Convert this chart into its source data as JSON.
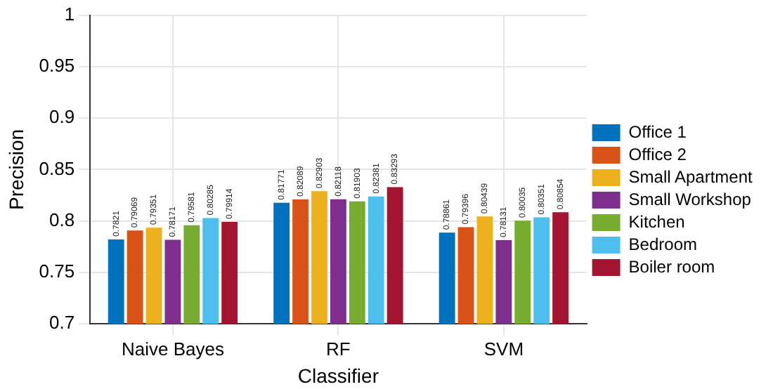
{
  "chart_data": {
    "type": "bar",
    "xlabel": "Classifier",
    "ylabel": "Precision",
    "categories": [
      "Naive Bayes",
      "RF",
      "SVM"
    ],
    "series": [
      {
        "name": "Office 1",
        "color": "#0072bd",
        "values": [
          0.7821,
          0.81771,
          0.78861
        ]
      },
      {
        "name": "Office 2",
        "color": "#d95319",
        "values": [
          0.79069,
          0.82089,
          0.79396
        ]
      },
      {
        "name": "Small Apartment",
        "color": "#edb120",
        "values": [
          0.79351,
          0.82903,
          0.80439
        ]
      },
      {
        "name": "Small Workshop",
        "color": "#7e2f8e",
        "values": [
          0.78171,
          0.82118,
          0.78131
        ]
      },
      {
        "name": "Kitchen",
        "color": "#77ac30",
        "values": [
          0.79581,
          0.81903,
          0.80035
        ]
      },
      {
        "name": "Bedroom",
        "color": "#4dbeee",
        "values": [
          0.80285,
          0.82381,
          0.80351
        ]
      },
      {
        "name": "Boiler room",
        "color": "#a2142f",
        "values": [
          0.79914,
          0.83293,
          0.80854
        ]
      }
    ],
    "ylim": [
      0.7,
      1
    ],
    "yticks": [
      0.7,
      0.75,
      0.8,
      0.85,
      0.9,
      0.95,
      1
    ],
    "grid": true,
    "legend": "right",
    "data_labels": true
  }
}
